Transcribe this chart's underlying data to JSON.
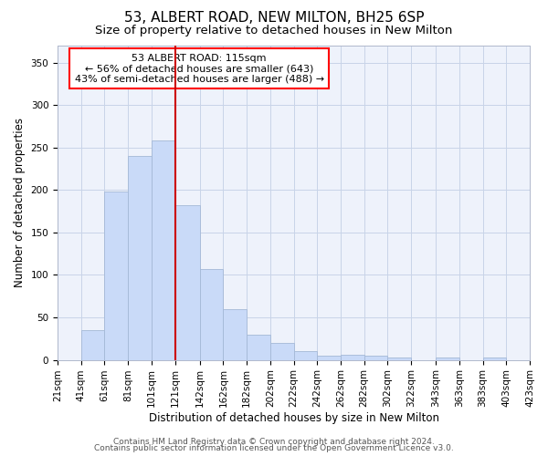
{
  "title1": "53, ALBERT ROAD, NEW MILTON, BH25 6SP",
  "title2": "Size of property relative to detached houses in New Milton",
  "xlabel": "Distribution of detached houses by size in New Milton",
  "ylabel": "Number of detached properties",
  "bar_left_edges": [
    21,
    41,
    61,
    81,
    101,
    121,
    142,
    162,
    182,
    202,
    222,
    242,
    262,
    282,
    302,
    322,
    343,
    363,
    383,
    403
  ],
  "bar_widths": [
    20,
    20,
    20,
    20,
    20,
    21,
    20,
    20,
    20,
    20,
    20,
    20,
    20,
    20,
    20,
    21,
    20,
    20,
    20,
    20
  ],
  "bar_heights": [
    0,
    35,
    198,
    240,
    258,
    182,
    107,
    60,
    30,
    20,
    10,
    5,
    6,
    5,
    3,
    0,
    3,
    0,
    3,
    0
  ],
  "bar_facecolor": "#c9daf8",
  "bar_edgecolor": "#a4b8d6",
  "vline_x": 121,
  "vline_color": "#cc0000",
  "ylim": [
    0,
    370
  ],
  "yticks": [
    0,
    50,
    100,
    150,
    200,
    250,
    300,
    350
  ],
  "xtick_labels": [
    "21sqm",
    "41sqm",
    "61sqm",
    "81sqm",
    "101sqm",
    "121sqm",
    "142sqm",
    "162sqm",
    "182sqm",
    "202sqm",
    "222sqm",
    "242sqm",
    "262sqm",
    "282sqm",
    "302sqm",
    "322sqm",
    "343sqm",
    "363sqm",
    "383sqm",
    "403sqm",
    "423sqm"
  ],
  "annotation_title": "53 ALBERT ROAD: 115sqm",
  "annotation_line1": "← 56% of detached houses are smaller (643)",
  "annotation_line2": "43% of semi-detached houses are larger (488) →",
  "footer1": "Contains HM Land Registry data © Crown copyright and database right 2024.",
  "footer2": "Contains public sector information licensed under the Open Government Licence v3.0.",
  "bg_color": "#ffffff",
  "plot_bg_color": "#eef2fb",
  "grid_color": "#c8d4e8",
  "title1_fontsize": 11,
  "title2_fontsize": 9.5,
  "axis_label_fontsize": 8.5,
  "tick_fontsize": 7.5,
  "annotation_fontsize": 8,
  "footer_fontsize": 6.5
}
